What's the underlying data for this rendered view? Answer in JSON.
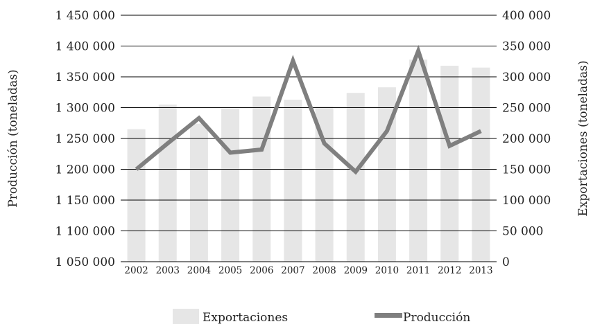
{
  "chart_data": {
    "type": "bar+line",
    "title": "",
    "categories": [
      "2002",
      "2003",
      "2004",
      "2005",
      "2006",
      "2007",
      "2008",
      "2009",
      "2010",
      "2011",
      "2012",
      "2013"
    ],
    "series": [
      {
        "name": "Exportaciones",
        "type": "bar",
        "axis": "right",
        "color": "#e6e6e6",
        "values": [
          215000,
          255000,
          224000,
          248000,
          268000,
          263000,
          252000,
          274000,
          283000,
          328000,
          318000,
          315000
        ]
      },
      {
        "name": "Producción",
        "type": "line",
        "axis": "left",
        "color": "#7f7f7f",
        "values": [
          1200000,
          1242000,
          1283000,
          1227000,
          1232000,
          1376000,
          1242000,
          1196000,
          1262000,
          1392000,
          1238000,
          1262000
        ]
      }
    ],
    "y_left": {
      "label": "Producción (toneladas)",
      "min": 1050000,
      "max": 1450000,
      "ticks": [
        1050000,
        1100000,
        1150000,
        1200000,
        1250000,
        1300000,
        1350000,
        1400000,
        1450000
      ],
      "tick_labels": [
        "1 050 000",
        "1 100 000",
        "1 150 000",
        "1 200 000",
        "1 250 000",
        "1 300 000",
        "1 350 000",
        "1 400 000",
        "1 450 000"
      ]
    },
    "y_right": {
      "label": "Exportaciones (toneladas)",
      "min": 0,
      "max": 400000,
      "ticks": [
        0,
        50000,
        100000,
        150000,
        200000,
        250000,
        300000,
        350000,
        400000
      ],
      "tick_labels": [
        "0",
        "50 000",
        "100 000",
        "150 000",
        "200 000",
        "250 000",
        "300 000",
        "350 000",
        "400 000"
      ]
    },
    "grid": true,
    "legend": {
      "position": "bottom",
      "items": [
        {
          "label": "Exportaciones",
          "color": "#e6e6e6",
          "kind": "bar"
        },
        {
          "label": "Producción",
          "color": "#7f7f7f",
          "kind": "line"
        }
      ]
    }
  }
}
